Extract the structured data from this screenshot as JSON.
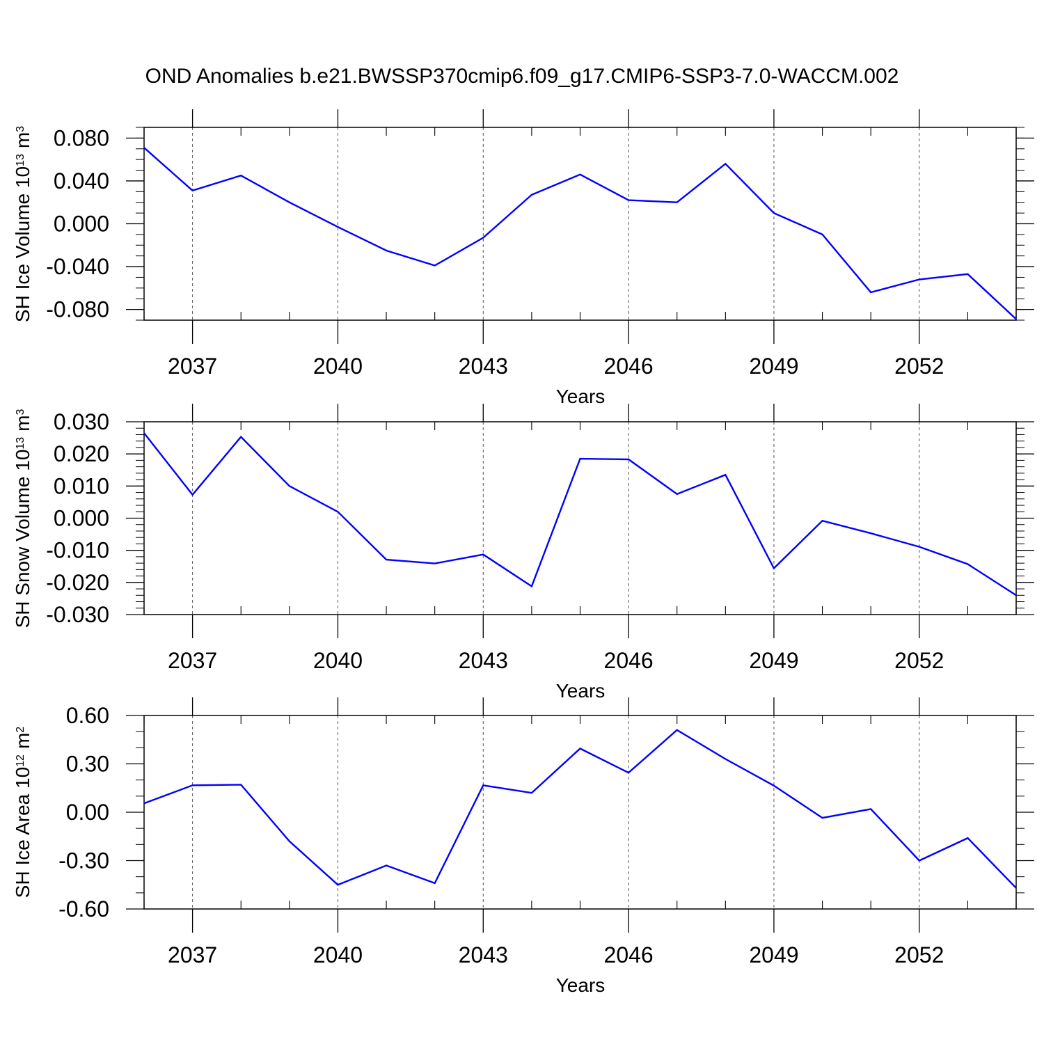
{
  "title": "OND Anomalies b.e21.BWSSP370cmip6.f09_g17.CMIP6-SSP3-7.0-WACCM.002",
  "chart_data": [
    {
      "type": "line",
      "ylabel": "SH Ice Volume 10",
      "ylabel_exp": "13",
      "ylabel_unit": "m",
      "ylabel_unit_exp": "3",
      "xlabel": "Years",
      "xlim": [
        2036,
        2054
      ],
      "ylim": [
        -0.09,
        0.09
      ],
      "yticks": [
        -0.08,
        -0.04,
        0.0,
        0.04,
        0.08
      ],
      "ytick_labels": [
        "-0.080",
        "-0.040",
        "0.000",
        "0.040",
        "0.080"
      ],
      "yminor_step": 0.01,
      "xticks": [
        2037,
        2040,
        2043,
        2046,
        2049,
        2052
      ],
      "xtick_labels": [
        "2037",
        "2040",
        "2043",
        "2046",
        "2049",
        "2052"
      ],
      "grid": "vertical dashed at major x ticks",
      "line_color": "#0000ff",
      "x": [
        2036,
        2037,
        2038,
        2039,
        2040,
        2041,
        2042,
        2043,
        2044,
        2045,
        2046,
        2047,
        2048,
        2049,
        2050,
        2051,
        2052,
        2053,
        2054
      ],
      "values": [
        0.071,
        0.031,
        0.045,
        0.02,
        -0.003,
        -0.025,
        -0.039,
        -0.013,
        0.027,
        0.046,
        0.022,
        0.02,
        0.056,
        0.01,
        -0.01,
        -0.064,
        -0.052,
        -0.047,
        -0.089
      ]
    },
    {
      "type": "line",
      "ylabel": "SH Snow Volume 10",
      "ylabel_exp": "13",
      "ylabel_unit": "m",
      "ylabel_unit_exp": "3",
      "xlabel": "Years",
      "xlim": [
        2036,
        2054
      ],
      "ylim": [
        -0.03,
        0.03
      ],
      "yticks": [
        -0.03,
        -0.02,
        -0.01,
        0.0,
        0.01,
        0.02,
        0.03
      ],
      "ytick_labels": [
        "-0.030",
        "-0.020",
        "-0.010",
        "0.000",
        "0.010",
        "0.020",
        "0.030"
      ],
      "yminor_step": 0.002,
      "xticks": [
        2037,
        2040,
        2043,
        2046,
        2049,
        2052
      ],
      "xtick_labels": [
        "2037",
        "2040",
        "2043",
        "2046",
        "2049",
        "2052"
      ],
      "grid": "vertical dashed at major x ticks",
      "line_color": "#0000ff",
      "x": [
        2036,
        2037,
        2038,
        2039,
        2040,
        2041,
        2042,
        2043,
        2044,
        2045,
        2046,
        2047,
        2048,
        2049,
        2050,
        2051,
        2052,
        2053,
        2054
      ],
      "values": [
        0.0265,
        0.0073,
        0.0253,
        0.01,
        0.002,
        -0.0129,
        -0.0141,
        -0.0113,
        -0.0212,
        0.0185,
        0.0183,
        0.0075,
        0.0135,
        -0.0156,
        -0.0008,
        -0.0047,
        -0.0089,
        -0.0143,
        -0.024
      ]
    },
    {
      "type": "line",
      "ylabel": "SH Ice Area 10",
      "ylabel_exp": "12",
      "ylabel_unit": "m",
      "ylabel_unit_exp": "2",
      "xlabel": "Years",
      "xlim": [
        2036,
        2054
      ],
      "ylim": [
        -0.6,
        0.6
      ],
      "yticks": [
        -0.6,
        -0.3,
        0.0,
        0.3,
        0.6
      ],
      "ytick_labels": [
        "-0.60",
        "-0.30",
        "0.00",
        "0.30",
        "0.60"
      ],
      "yminor_step": 0.1,
      "xticks": [
        2037,
        2040,
        2043,
        2046,
        2049,
        2052
      ],
      "xtick_labels": [
        "2037",
        "2040",
        "2043",
        "2046",
        "2049",
        "2052"
      ],
      "grid": "vertical dashed at major x ticks",
      "line_color": "#0000ff",
      "x": [
        2036,
        2037,
        2038,
        2039,
        2040,
        2041,
        2042,
        2043,
        2044,
        2045,
        2046,
        2047,
        2048,
        2049,
        2050,
        2051,
        2052,
        2053,
        2054
      ],
      "values": [
        0.055,
        0.167,
        0.171,
        -0.18,
        -0.45,
        -0.33,
        -0.44,
        0.167,
        0.12,
        0.395,
        0.245,
        0.51,
        0.33,
        0.165,
        -0.035,
        0.02,
        -0.3,
        -0.16,
        -0.47
      ]
    }
  ]
}
